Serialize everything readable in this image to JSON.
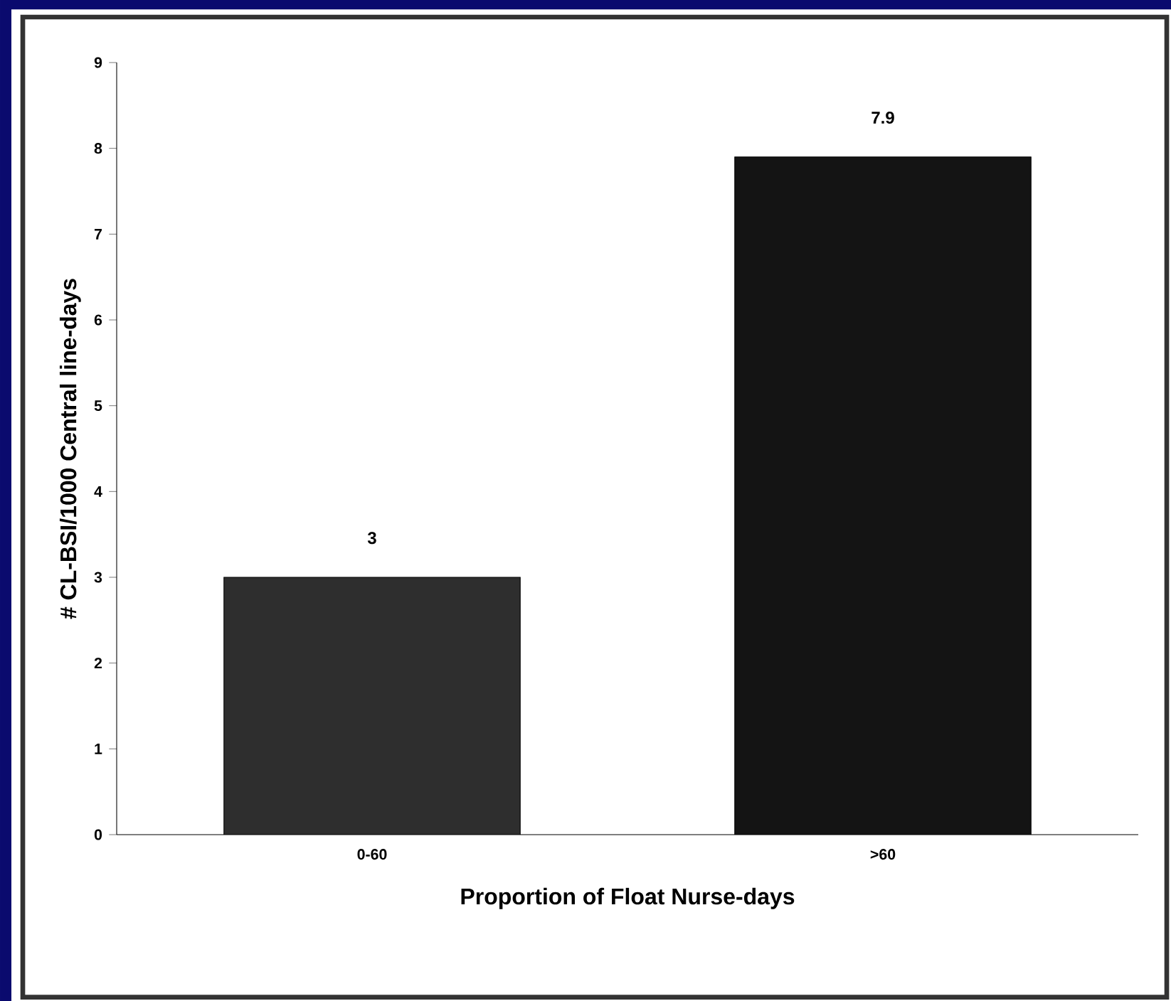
{
  "chart_data": {
    "type": "bar",
    "xlabel": "Proportion of Float Nurse-days",
    "ylabel": "# CL-BSI/1000 Central line-days",
    "categories": [
      "0-60",
      ">60"
    ],
    "values": [
      3,
      7.9
    ],
    "colors": [
      "#2e2e2e",
      "#141414"
    ],
    "value_labels": [
      "3",
      "7.9"
    ],
    "ylim": [
      0,
      9
    ],
    "yticks": [
      0,
      1,
      2,
      3,
      4,
      5,
      6,
      7,
      8,
      9
    ]
  }
}
